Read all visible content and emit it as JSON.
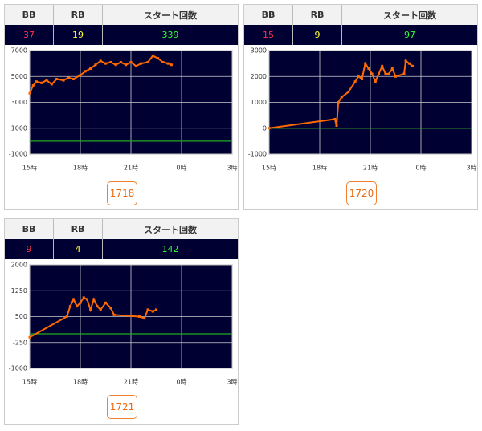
{
  "panels": [
    {
      "table": {
        "headers": [
          "BB",
          "RB",
          "スタート回数"
        ],
        "values": [
          37,
          19,
          339
        ],
        "value_colors": [
          "#ff3344",
          "#ffff33",
          "#33ff33"
        ]
      },
      "chart": {
        "type": "line",
        "line_color": "#ff6a00",
        "zero_color": "#22aa22",
        "background": "#000033",
        "grid": true,
        "xlim": [
          15,
          27
        ],
        "ylim": [
          -1000,
          7000
        ],
        "xticks": [
          {
            "value": 15,
            "label": "15時"
          },
          {
            "value": 18,
            "label": "18時"
          },
          {
            "value": 21,
            "label": "21時"
          },
          {
            "value": 24,
            "label": "0時"
          },
          {
            "value": 27,
            "label": "3時"
          }
        ],
        "yticks": [
          -1000,
          1000,
          3000,
          5000,
          7000
        ],
        "x": [
          15.0,
          15.2,
          15.4,
          15.7,
          16.0,
          16.3,
          16.6,
          17.0,
          17.3,
          17.6,
          18.0,
          18.3,
          18.6,
          18.9,
          19.2,
          19.5,
          19.8,
          20.1,
          20.4,
          20.7,
          21.0,
          21.3,
          21.6,
          22.0,
          22.3,
          22.6,
          22.9,
          23.2,
          23.4
        ],
        "y": [
          3700,
          4300,
          4600,
          4500,
          4700,
          4400,
          4800,
          4700,
          4900,
          4800,
          5100,
          5400,
          5600,
          5900,
          6200,
          6000,
          6100,
          5900,
          6100,
          5900,
          6100,
          5800,
          6000,
          6100,
          6600,
          6400,
          6100,
          6000,
          5900
        ]
      },
      "button": "1718"
    },
    {
      "table": {
        "headers": [
          "BB",
          "RB",
          "スタート回数"
        ],
        "values": [
          15,
          9,
          97
        ],
        "value_colors": [
          "#ff3344",
          "#ffff33",
          "#33ff33"
        ]
      },
      "chart": {
        "type": "line",
        "line_color": "#ff6a00",
        "zero_color": "#22aa22",
        "background": "#000033",
        "grid": true,
        "xlim": [
          15,
          27
        ],
        "ylim": [
          -1000,
          3000
        ],
        "xticks": [
          {
            "value": 15,
            "label": "15時"
          },
          {
            "value": 18,
            "label": "18時"
          },
          {
            "value": 21,
            "label": "21時"
          },
          {
            "value": 24,
            "label": "0時"
          },
          {
            "value": 27,
            "label": "3時"
          }
        ],
        "yticks": [
          -1000,
          0,
          1000,
          2000,
          3000
        ],
        "x": [
          15.0,
          18.9,
          19.0,
          19.1,
          19.3,
          19.7,
          20.1,
          20.3,
          20.5,
          20.7,
          20.9,
          21.1,
          21.3,
          21.5,
          21.7,
          21.9,
          22.1,
          22.3,
          22.5,
          23.0,
          23.1,
          23.3,
          23.5
        ],
        "y": [
          0,
          350,
          100,
          1000,
          1200,
          1400,
          1800,
          2000,
          1900,
          2500,
          2300,
          2100,
          1800,
          2100,
          2400,
          2100,
          2100,
          2300,
          2000,
          2100,
          2600,
          2500,
          2400
        ]
      },
      "button": "1720"
    },
    {
      "table": {
        "headers": [
          "BB",
          "RB",
          "スタート回数"
        ],
        "values": [
          9,
          4,
          142
        ],
        "value_colors": [
          "#ff3344",
          "#ffff33",
          "#33ff33"
        ]
      },
      "chart": {
        "type": "line",
        "line_color": "#ff6a00",
        "zero_color": "#22aa22",
        "background": "#000033",
        "grid": true,
        "xlim": [
          15,
          27
        ],
        "ylim": [
          -1000,
          2000
        ],
        "xticks": [
          {
            "value": 15,
            "label": "15時"
          },
          {
            "value": 18,
            "label": "18時"
          },
          {
            "value": 21,
            "label": "21時"
          },
          {
            "value": 24,
            "label": "0時"
          },
          {
            "value": 27,
            "label": "3時"
          }
        ],
        "yticks": [
          -1000,
          -250,
          500,
          1250,
          2000
        ],
        "x": [
          15.0,
          17.2,
          17.4,
          17.6,
          17.8,
          18.0,
          18.2,
          18.4,
          18.6,
          18.8,
          19.0,
          19.2,
          19.5,
          19.8,
          20.0,
          21.5,
          21.8,
          22.0,
          22.3,
          22.5
        ],
        "y": [
          -100,
          500,
          800,
          1000,
          800,
          900,
          1050,
          1000,
          700,
          1000,
          800,
          700,
          900,
          750,
          550,
          500,
          450,
          700,
          650,
          700
        ]
      },
      "button": "1721"
    }
  ]
}
